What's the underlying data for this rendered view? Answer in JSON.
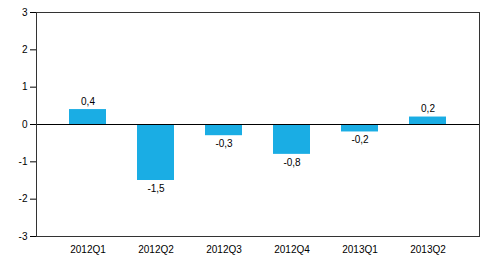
{
  "chart_data": {
    "type": "bar",
    "categories": [
      "2012Q1",
      "2012Q2",
      "2012Q3",
      "2012Q4",
      "2013Q1",
      "2013Q2"
    ],
    "values": [
      0.4,
      -1.5,
      -0.3,
      -0.8,
      -0.2,
      0.2
    ],
    "value_labels": [
      "0,4",
      "-1,5",
      "-0,3",
      "-0,8",
      "-0,2",
      "0,2"
    ],
    "data_labels": true,
    "color": "#1aade4",
    "ylim": [
      -3,
      3
    ],
    "yticks": [
      -3,
      -2,
      -1,
      0,
      1,
      2,
      3
    ],
    "grid": false
  }
}
